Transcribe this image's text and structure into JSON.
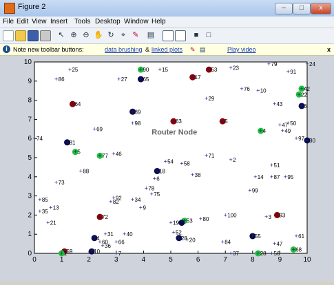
{
  "window": {
    "title": "Figure 2",
    "minimize_label": "–",
    "maximize_label": "□",
    "close_label": "x"
  },
  "menu": [
    "File",
    "Edit",
    "View",
    "Insert",
    "Tools",
    "Desktop",
    "Window",
    "Help"
  ],
  "toolbar_icons": [
    "new-figure-icon",
    "open-icon",
    "save-icon",
    "print-icon",
    "arrow-icon",
    "zoom-in-icon",
    "zoom-out-icon",
    "pan-icon",
    "rotate-icon",
    "data-cursor-icon",
    "brush-icon",
    "link-plot-icon",
    "colorbar-icon",
    "legend-icon",
    "hide-plot-tools-icon",
    "show-plot-tools-icon"
  ],
  "notice": {
    "prefix": "Note new toolbar buttons:",
    "link1": "data brushing",
    "amp": "&",
    "link2": "linked plots",
    "link3": "Play video",
    "close": "x"
  },
  "chart_data": {
    "type": "scatter",
    "title": "",
    "xlabel": "",
    "ylabel": "",
    "xlim": [
      0,
      10
    ],
    "ylim": [
      0,
      10
    ],
    "xticks": [
      0,
      1,
      2,
      3,
      4,
      5,
      6,
      7,
      8,
      9,
      10
    ],
    "yticks": [
      0,
      1,
      2,
      3,
      4,
      5,
      6,
      7,
      8,
      9,
      10
    ],
    "annotation": {
      "text": "Router Node",
      "x": 4.3,
      "y": 6.2
    },
    "nodes": [
      {
        "label": "25",
        "x": 1.3,
        "y": 9.6
      },
      {
        "label": "90",
        "x": 3.9,
        "y": 9.6
      },
      {
        "label": "15",
        "x": 4.6,
        "y": 9.6
      },
      {
        "label": "53",
        "x": 6.4,
        "y": 9.6
      },
      {
        "label": "23",
        "x": 7.2,
        "y": 9.7
      },
      {
        "label": "79",
        "x": 8.6,
        "y": 9.9
      },
      {
        "label": "91",
        "x": 9.3,
        "y": 9.5
      },
      {
        "label": "24",
        "x": 10.0,
        "y": 9.9
      },
      {
        "label": "86",
        "x": 0.8,
        "y": 9.1
      },
      {
        "label": "27",
        "x": 3.1,
        "y": 9.1
      },
      {
        "label": "65",
        "x": 3.9,
        "y": 9.1
      },
      {
        "label": "17",
        "x": 5.8,
        "y": 9.2
      },
      {
        "label": "76",
        "x": 7.6,
        "y": 8.6
      },
      {
        "label": "10",
        "x": 8.2,
        "y": 8.5
      },
      {
        "label": "42",
        "x": 9.8,
        "y": 8.6
      },
      {
        "label": "29",
        "x": 6.3,
        "y": 8.1
      },
      {
        "label": "22",
        "x": 9.7,
        "y": 8.3
      },
      {
        "label": "64",
        "x": 1.4,
        "y": 7.8
      },
      {
        "label": "43",
        "x": 8.8,
        "y": 7.8
      },
      {
        "label": "6",
        "x": 9.8,
        "y": 7.7
      },
      {
        "label": "89",
        "x": 3.6,
        "y": 7.4
      },
      {
        "label": "98",
        "x": 3.6,
        "y": 6.8
      },
      {
        "label": "63",
        "x": 5.1,
        "y": 6.9
      },
      {
        "label": "5",
        "x": 6.9,
        "y": 6.9
      },
      {
        "label": "50",
        "x": 9.3,
        "y": 6.8
      },
      {
        "label": "47",
        "x": 9.0,
        "y": 6.7
      },
      {
        "label": "69",
        "x": 2.2,
        "y": 6.5
      },
      {
        "label": "4",
        "x": 8.3,
        "y": 6.4
      },
      {
        "label": "49",
        "x": 9.1,
        "y": 6.4
      },
      {
        "label": "74",
        "x": 0.0,
        "y": 6.0
      },
      {
        "label": "81",
        "x": 1.2,
        "y": 5.8
      },
      {
        "label": "97",
        "x": 9.6,
        "y": 6.0
      },
      {
        "label": "30",
        "x": 10.0,
        "y": 5.9
      },
      {
        "label": "5",
        "x": 1.5,
        "y": 5.3
      },
      {
        "label": "46",
        "x": 2.9,
        "y": 5.2
      },
      {
        "label": "77",
        "x": 2.4,
        "y": 5.1
      },
      {
        "label": "71",
        "x": 6.3,
        "y": 5.1
      },
      {
        "label": "2",
        "x": 7.2,
        "y": 4.9
      },
      {
        "label": "54",
        "x": 4.8,
        "y": 4.8
      },
      {
        "label": "58",
        "x": 5.4,
        "y": 4.7
      },
      {
        "label": "51",
        "x": 8.7,
        "y": 4.6
      },
      {
        "label": "88",
        "x": 1.7,
        "y": 4.3
      },
      {
        "label": "18",
        "x": 4.5,
        "y": 4.3
      },
      {
        "label": "38",
        "x": 5.8,
        "y": 4.1
      },
      {
        "label": "14",
        "x": 8.1,
        "y": 4.0
      },
      {
        "label": "87",
        "x": 8.7,
        "y": 4.0
      },
      {
        "label": "95",
        "x": 9.2,
        "y": 4.0
      },
      {
        "label": "6",
        "x": 4.4,
        "y": 3.9
      },
      {
        "label": "73",
        "x": 0.8,
        "y": 3.7
      },
      {
        "label": "78",
        "x": 4.1,
        "y": 3.4
      },
      {
        "label": "99",
        "x": 7.9,
        "y": 3.3
      },
      {
        "label": "75",
        "x": 4.3,
        "y": 3.1
      },
      {
        "label": "92",
        "x": 2.9,
        "y": 2.9
      },
      {
        "label": "34",
        "x": 3.6,
        "y": 2.8
      },
      {
        "label": "85",
        "x": 0.2,
        "y": 2.8
      },
      {
        "label": "82",
        "x": 2.8,
        "y": 2.7
      },
      {
        "label": "9",
        "x": 3.9,
        "y": 2.4
      },
      {
        "label": "13",
        "x": 0.6,
        "y": 2.4
      },
      {
        "label": "35",
        "x": 0.2,
        "y": 2.2
      },
      {
        "label": "72",
        "x": 2.4,
        "y": 1.9
      },
      {
        "label": "100",
        "x": 7.0,
        "y": 2.0
      },
      {
        "label": "80",
        "x": 6.1,
        "y": 1.8
      },
      {
        "label": "3",
        "x": 8.5,
        "y": 1.9
      },
      {
        "label": "93",
        "x": 8.9,
        "y": 2.0
      },
      {
        "label": "21",
        "x": 0.5,
        "y": 1.6
      },
      {
        "label": "19",
        "x": 5.0,
        "y": 1.6
      },
      {
        "label": "53",
        "x": 5.5,
        "y": 1.7
      },
      {
        "label": "31",
        "x": 2.6,
        "y": 1.0
      },
      {
        "label": "40",
        "x": 3.3,
        "y": 1.0
      },
      {
        "label": "52",
        "x": 5.1,
        "y": 1.1
      },
      {
        "label": "55",
        "x": 8.0,
        "y": 0.9
      },
      {
        "label": "61",
        "x": 9.6,
        "y": 0.9
      },
      {
        "label": "4",
        "x": 2.2,
        "y": 0.8
      },
      {
        "label": "60",
        "x": 2.4,
        "y": 0.6
      },
      {
        "label": "66",
        "x": 3.0,
        "y": 0.6
      },
      {
        "label": "20",
        "x": 5.6,
        "y": 0.7
      },
      {
        "label": "84",
        "x": 6.9,
        "y": 0.6
      },
      {
        "label": "47",
        "x": 8.8,
        "y": 0.5
      },
      {
        "label": "28",
        "x": 5.3,
        "y": 0.8
      },
      {
        "label": "36",
        "x": 2.5,
        "y": 0.4
      },
      {
        "label": "59",
        "x": 1.1,
        "y": 0.1
      },
      {
        "label": "1",
        "x": 1.0,
        "y": 0.0
      },
      {
        "label": "10",
        "x": 2.1,
        "y": 0.1
      },
      {
        "label": "7",
        "x": 3.0,
        "y": 0.0
      },
      {
        "label": "37",
        "x": 7.2,
        "y": 0.0
      },
      {
        "label": "28",
        "x": 8.2,
        "y": 0.0
      },
      {
        "label": "56",
        "x": 8.7,
        "y": 0.0
      },
      {
        "label": "68",
        "x": 9.5,
        "y": 0.2
      }
    ],
    "clusters": [
      {
        "color": "#8b0000",
        "points": [
          [
            5.8,
            9.2
          ],
          [
            6.4,
            9.6
          ],
          [
            1.4,
            7.8
          ],
          [
            5.1,
            6.9
          ],
          [
            6.9,
            6.9
          ],
          [
            2.4,
            1.9
          ],
          [
            8.9,
            2.0
          ],
          [
            1.1,
            0.1
          ]
        ]
      },
      {
        "color": "#1fbf3a",
        "points": [
          [
            3.9,
            9.6
          ],
          [
            9.8,
            8.6
          ],
          [
            9.7,
            8.3
          ],
          [
            8.3,
            6.4
          ],
          [
            2.4,
            5.1
          ],
          [
            1.5,
            5.3
          ],
          [
            5.5,
            1.7
          ],
          [
            8.2,
            0.0
          ],
          [
            9.5,
            0.2
          ],
          [
            1.0,
            0.0
          ]
        ]
      },
      {
        "color": "#0b0b4a",
        "points": [
          [
            3.9,
            9.1
          ],
          [
            9.8,
            7.7
          ],
          [
            3.6,
            7.4
          ],
          [
            1.2,
            5.8
          ],
          [
            10.0,
            5.9
          ],
          [
            4.5,
            4.3
          ],
          [
            5.3,
            0.8
          ],
          [
            8.0,
            0.9
          ],
          [
            2.2,
            0.8
          ],
          [
            2.1,
            0.1
          ],
          [
            5.4,
            1.6
          ]
        ]
      }
    ]
  }
}
